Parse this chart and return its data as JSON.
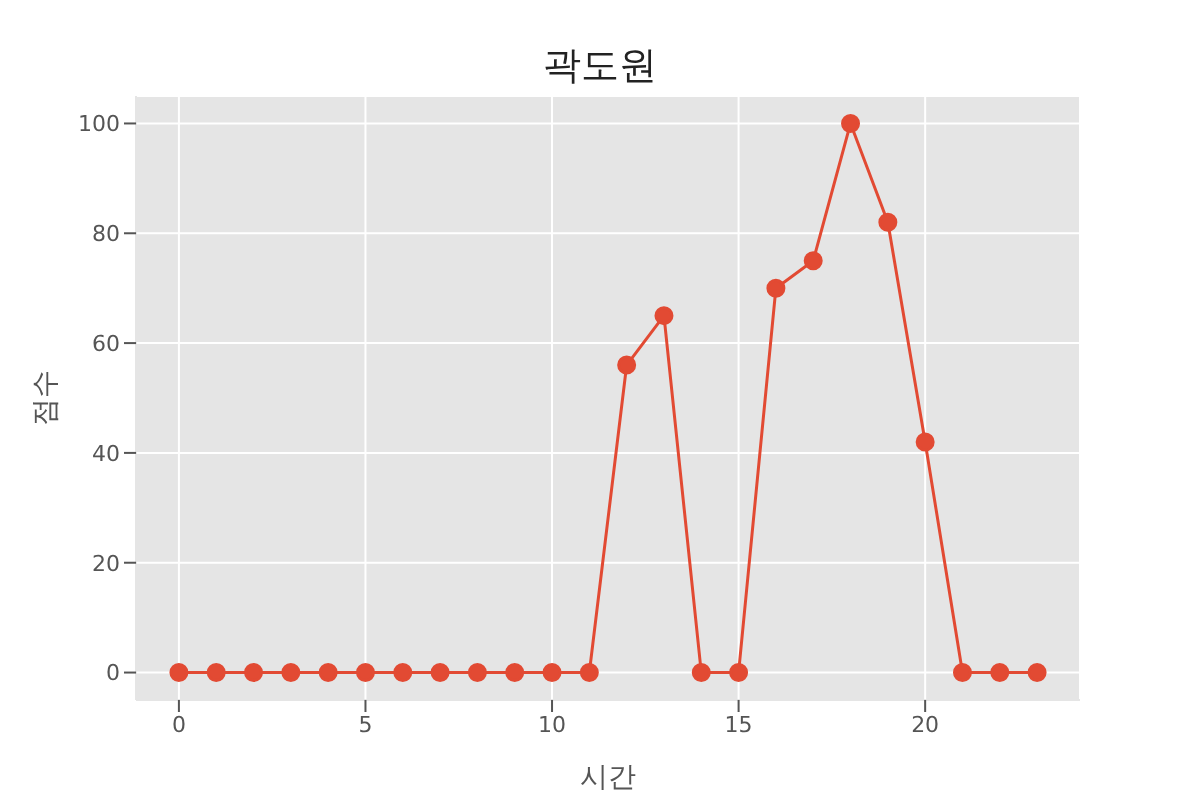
{
  "chart_data": {
    "type": "line",
    "title": "곽도원",
    "xlabel": "시간",
    "ylabel": "점수",
    "x": [
      0,
      1,
      2,
      3,
      4,
      5,
      6,
      7,
      8,
      9,
      10,
      11,
      12,
      13,
      14,
      15,
      16,
      17,
      18,
      19,
      20,
      21,
      22,
      23
    ],
    "series": [
      {
        "color": "#e24a33",
        "values": [
          0,
          0,
          0,
          0,
          0,
          0,
          0,
          0,
          0,
          0,
          0,
          0,
          56,
          65,
          0,
          0,
          70,
          75,
          100,
          82,
          42,
          0,
          0,
          0
        ]
      }
    ],
    "xlim": [
      -1.15,
      24.15
    ],
    "xticks": [
      0,
      5,
      10,
      15,
      20
    ],
    "ylim": [
      -5,
      105
    ],
    "yticks": [
      0,
      20,
      40,
      60,
      80,
      100
    ],
    "grid": true,
    "marker": "circle",
    "line_style": "solid"
  }
}
